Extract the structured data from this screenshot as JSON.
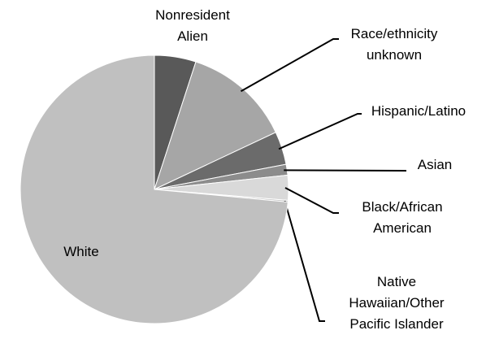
{
  "chart_data": {
    "type": "pie",
    "categories": [
      "Nonresident Alien",
      "Race/ethnicity unknown",
      "Hispanic/Latino",
      "Asian",
      "Black/African American",
      "Native Hawaiian/Other Pacific Islander",
      "White"
    ],
    "values": [
      5,
      13,
      4,
      1.3,
      3,
      0.2,
      73.5
    ],
    "colors": [
      "#595959",
      "#a6a6a6",
      "#6b6b6b",
      "#8c8c8c",
      "#d9d9d9",
      "#bfbfbf",
      "#c0c0c0"
    ]
  }
}
